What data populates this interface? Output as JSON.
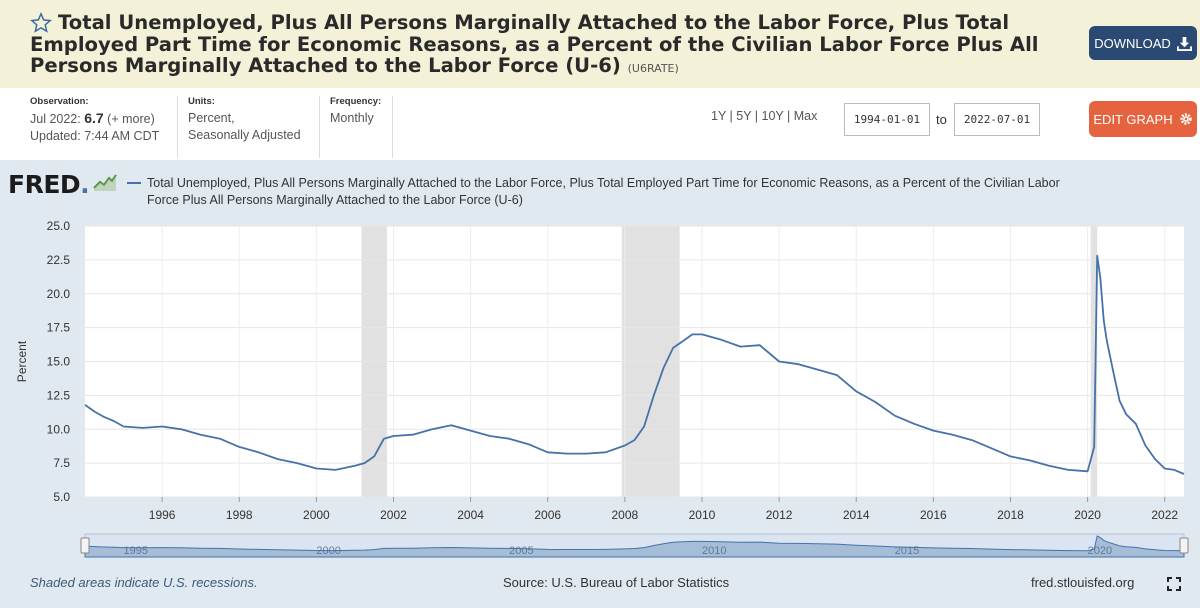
{
  "header": {
    "title": "Total Unemployed, Plus All Persons Marginally Attached to the Labor Force, Plus Total Employed Part Time for Economic Reasons, as a Percent of the Civilian Labor Force Plus All Persons Marginally Attached to the Labor Force (U-6)",
    "series_id": "(U6RATE)",
    "download_label": "DOWNLOAD",
    "bg_color": "#f3f1d8"
  },
  "meta": {
    "observation_label": "Observation:",
    "observation_date": "Jul 2022: ",
    "observation_value": "6.7",
    "observation_more": " (+ more)",
    "updated": "Updated: 7:44 AM CDT",
    "units_label": "Units:",
    "units_line1": "Percent,",
    "units_line2": "Seasonally Adjusted",
    "frequency_label": "Frequency:",
    "frequency_value": "Monthly"
  },
  "controls": {
    "range_links": "1Y | 5Y | 10Y | Max",
    "start_date": "1994-01-01",
    "to_label": "to",
    "end_date": "2022-07-01",
    "edit_label": "EDIT GRAPH"
  },
  "logo": {
    "text": "FRED",
    "dot": "."
  },
  "footer": {
    "recession_note": "Shaded areas indicate U.S. recessions.",
    "source": "Source: U.S. Bureau of Labor Statistics",
    "url": "fred.stlouisfed.org"
  },
  "icons": [
    "star-icon",
    "download-icon",
    "gear-icon",
    "expand-icon",
    "sparkline-icon"
  ],
  "chart_data": {
    "type": "line",
    "legend": "Total Unemployed, Plus All Persons Marginally Attached to the Labor Force, Plus Total Employed Part Time for Economic Reasons, as a Percent of the Civilian Labor Force Plus All Persons Marginally Attached to the Labor Force (U-6)",
    "ylabel": "Percent",
    "xlim": [
      1994.0,
      2022.5
    ],
    "ylim": [
      5.0,
      25.0
    ],
    "yticks": [
      "5.0",
      "7.5",
      "10.0",
      "12.5",
      "15.0",
      "17.5",
      "20.0",
      "22.5",
      "25.0"
    ],
    "xticks": [
      "1996",
      "1998",
      "2000",
      "2002",
      "2004",
      "2006",
      "2008",
      "2010",
      "2012",
      "2014",
      "2016",
      "2018",
      "2020",
      "2022"
    ],
    "navigator_labels": [
      "1995",
      "2000",
      "2005",
      "2010",
      "2015",
      "2020"
    ],
    "recessions": [
      [
        2001.17,
        2001.83
      ],
      [
        2007.92,
        2009.42
      ],
      [
        2020.08,
        2020.25
      ]
    ],
    "series_color": "#4572a7",
    "grid": true,
    "series": [
      {
        "x": [
          1994.0,
          1994.25,
          1994.5,
          1994.75,
          1995.0,
          1995.5,
          1996.0,
          1996.5,
          1997.0,
          1997.5,
          1998.0,
          1998.5,
          1999.0,
          1999.5,
          2000.0,
          2000.5,
          2001.0,
          2001.25,
          2001.5,
          2001.75,
          2002.0,
          2002.5,
          2003.0,
          2003.5,
          2004.0,
          2004.5,
          2005.0,
          2005.5,
          2006.0,
          2006.5,
          2007.0,
          2007.5,
          2008.0,
          2008.25,
          2008.5,
          2008.75,
          2009.0,
          2009.25,
          2009.5,
          2009.75,
          2010.0,
          2010.5,
          2011.0,
          2011.5,
          2012.0,
          2012.5,
          2013.0,
          2013.5,
          2014.0,
          2014.5,
          2015.0,
          2015.5,
          2016.0,
          2016.5,
          2017.0,
          2017.5,
          2018.0,
          2018.5,
          2019.0,
          2019.5,
          2020.0,
          2020.17,
          2020.25,
          2020.33,
          2020.42,
          2020.5,
          2020.67,
          2020.83,
          2021.0,
          2021.25,
          2021.5,
          2021.75,
          2022.0,
          2022.25,
          2022.5
        ],
        "values": [
          11.8,
          11.3,
          10.9,
          10.6,
          10.2,
          10.1,
          10.2,
          10.0,
          9.6,
          9.3,
          8.7,
          8.3,
          7.8,
          7.5,
          7.1,
          7.0,
          7.3,
          7.5,
          8.0,
          9.3,
          9.5,
          9.6,
          10.0,
          10.3,
          9.9,
          9.5,
          9.3,
          8.9,
          8.3,
          8.2,
          8.2,
          8.3,
          8.8,
          9.2,
          10.2,
          12.5,
          14.5,
          16.0,
          16.5,
          17.0,
          17.0,
          16.6,
          16.1,
          16.2,
          15.0,
          14.8,
          14.4,
          14.0,
          12.8,
          12.0,
          11.0,
          10.4,
          9.9,
          9.6,
          9.2,
          8.6,
          8.0,
          7.7,
          7.3,
          7.0,
          6.9,
          8.7,
          22.8,
          21.2,
          18.0,
          16.5,
          14.2,
          12.1,
          11.1,
          10.4,
          8.8,
          7.8,
          7.1,
          7.0,
          6.7
        ]
      }
    ]
  }
}
